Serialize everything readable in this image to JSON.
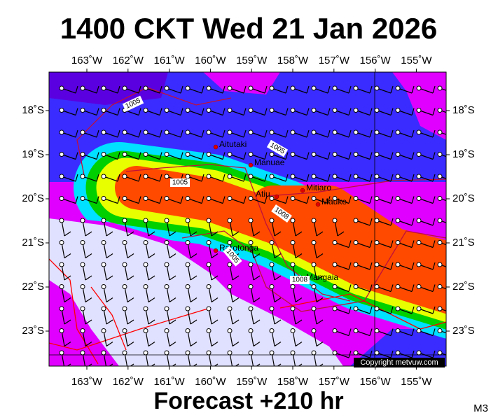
{
  "title": "1400 CKT Wed 21 Jan 2026",
  "map": {
    "longitude_labels": [
      "163˚W",
      "162˚W",
      "161˚W",
      "160˚W",
      "159˚W",
      "158˚W",
      "157˚W",
      "156˚W",
      "155˚W"
    ],
    "latitude_labels": [
      "18˚S",
      "19˚S",
      "20˚S",
      "21˚S",
      "22˚S",
      "23˚S"
    ],
    "places": [
      "Aitutaki",
      "Manuae",
      "Atiu",
      "Mitiaro",
      "Mauke",
      "Rarotonga",
      "Mangaia"
    ],
    "isobar_labels": [
      "1005",
      "1005",
      "1005",
      "1008",
      "1005",
      "1008"
    ],
    "copyright": "Copyright metvuw.com"
  },
  "footer": {
    "forecast": "Forecast +210 hr",
    "model": "M3"
  }
}
